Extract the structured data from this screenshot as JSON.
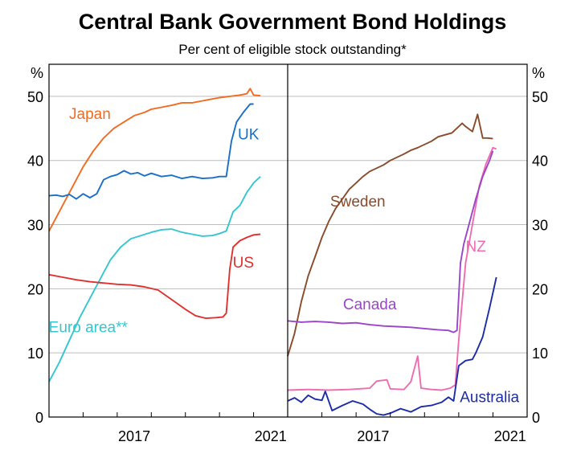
{
  "chart_data": {
    "title": "Central Bank Government Bond Holdings",
    "subtitle": "Per cent of eligible stock outstanding*",
    "unit_label": "%",
    "type": "line",
    "ylim": [
      0,
      55
    ],
    "yticks": [
      0,
      10,
      20,
      30,
      40,
      50
    ],
    "grid": true,
    "panels": [
      {
        "name": "left",
        "xlim": [
          2015.0,
          2022.0
        ],
        "xticks": [
          2017,
          2021
        ],
        "series": [
          {
            "name": "Japan",
            "color": "#f26b21",
            "label_at": [
              2016.2,
              46.5
            ],
            "points": [
              [
                2015.0,
                29
              ],
              [
                2015.2,
                31
              ],
              [
                2015.5,
                34
              ],
              [
                2015.8,
                37
              ],
              [
                2016.0,
                39
              ],
              [
                2016.3,
                41.5
              ],
              [
                2016.6,
                43.5
              ],
              [
                2016.9,
                45
              ],
              [
                2017.2,
                46
              ],
              [
                2017.5,
                47
              ],
              [
                2017.8,
                47.5
              ],
              [
                2018.0,
                48
              ],
              [
                2018.3,
                48.3
              ],
              [
                2018.6,
                48.6
              ],
              [
                2018.9,
                49
              ],
              [
                2019.2,
                49
              ],
              [
                2019.5,
                49.3
              ],
              [
                2019.8,
                49.6
              ],
              [
                2020.0,
                49.8
              ],
              [
                2020.3,
                50
              ],
              [
                2020.6,
                50.2
              ],
              [
                2020.8,
                50.4
              ],
              [
                2020.9,
                51.2
              ],
              [
                2021.0,
                50.2
              ],
              [
                2021.2,
                50.1
              ]
            ]
          },
          {
            "name": "UK",
            "color": "#1a6fc9",
            "label_at": [
              2020.85,
              43.3
            ],
            "points": [
              [
                2015.0,
                34.5
              ],
              [
                2015.2,
                34.6
              ],
              [
                2015.4,
                34.4
              ],
              [
                2015.6,
                34.7
              ],
              [
                2015.8,
                34
              ],
              [
                2016.0,
                34.8
              ],
              [
                2016.2,
                34.2
              ],
              [
                2016.4,
                34.8
              ],
              [
                2016.6,
                37
              ],
              [
                2016.8,
                37.5
              ],
              [
                2017.0,
                37.8
              ],
              [
                2017.2,
                38.4
              ],
              [
                2017.4,
                37.9
              ],
              [
                2017.6,
                38.1
              ],
              [
                2017.8,
                37.6
              ],
              [
                2018.0,
                38.0
              ],
              [
                2018.3,
                37.5
              ],
              [
                2018.6,
                37.7
              ],
              [
                2018.9,
                37.2
              ],
              [
                2019.2,
                37.5
              ],
              [
                2019.5,
                37.2
              ],
              [
                2019.8,
                37.3
              ],
              [
                2020.0,
                37.5
              ],
              [
                2020.2,
                37.5
              ],
              [
                2020.35,
                43
              ],
              [
                2020.5,
                46
              ],
              [
                2020.7,
                47.5
              ],
              [
                2020.9,
                48.8
              ],
              [
                2021.0,
                48.8
              ]
            ]
          },
          {
            "name": "Euro area**",
            "color": "#35c6d1",
            "label_at": [
              2016.15,
              13.2
            ],
            "points": [
              [
                2015.0,
                5.5
              ],
              [
                2015.3,
                8.5
              ],
              [
                2015.6,
                12
              ],
              [
                2015.9,
                15.5
              ],
              [
                2016.2,
                18.5
              ],
              [
                2016.5,
                21.5
              ],
              [
                2016.8,
                24.5
              ],
              [
                2017.1,
                26.5
              ],
              [
                2017.4,
                27.8
              ],
              [
                2017.7,
                28.3
              ],
              [
                2018.0,
                28.8
              ],
              [
                2018.3,
                29.2
              ],
              [
                2018.6,
                29.3
              ],
              [
                2018.9,
                28.8
              ],
              [
                2019.2,
                28.5
              ],
              [
                2019.5,
                28.2
              ],
              [
                2019.8,
                28.3
              ],
              [
                2020.0,
                28.6
              ],
              [
                2020.2,
                29
              ],
              [
                2020.4,
                32
              ],
              [
                2020.6,
                33
              ],
              [
                2020.8,
                35
              ],
              [
                2021.0,
                36.5
              ],
              [
                2021.2,
                37.5
              ]
            ]
          },
          {
            "name": "US",
            "color": "#e0312f",
            "label_at": [
              2020.7,
              23.3
            ],
            "points": [
              [
                2015.0,
                22.2
              ],
              [
                2015.4,
                21.8
              ],
              [
                2015.8,
                21.4
              ],
              [
                2016.2,
                21.1
              ],
              [
                2016.6,
                20.9
              ],
              [
                2017.0,
                20.7
              ],
              [
                2017.4,
                20.6
              ],
              [
                2017.8,
                20.3
              ],
              [
                2018.2,
                19.8
              ],
              [
                2018.6,
                18.3
              ],
              [
                2019.0,
                16.8
              ],
              [
                2019.3,
                15.8
              ],
              [
                2019.6,
                15.4
              ],
              [
                2019.9,
                15.5
              ],
              [
                2020.1,
                15.6
              ],
              [
                2020.2,
                16.2
              ],
              [
                2020.3,
                23
              ],
              [
                2020.4,
                26.5
              ],
              [
                2020.6,
                27.5
              ],
              [
                2020.8,
                28
              ],
              [
                2021.0,
                28.4
              ],
              [
                2021.2,
                28.5
              ]
            ]
          }
        ]
      },
      {
        "name": "right",
        "xlim": [
          2015.0,
          2022.0
        ],
        "xticks": [
          2017,
          2021
        ],
        "series": [
          {
            "name": "Sweden",
            "color": "#8b4a2a",
            "label_at": [
              2017.05,
              32.8
            ],
            "points": [
              [
                2015.0,
                9.5
              ],
              [
                2015.2,
                13
              ],
              [
                2015.4,
                18
              ],
              [
                2015.6,
                22
              ],
              [
                2015.8,
                25
              ],
              [
                2016.0,
                28
              ],
              [
                2016.2,
                30.5
              ],
              [
                2016.4,
                32.5
              ],
              [
                2016.6,
                34
              ],
              [
                2016.8,
                35.5
              ],
              [
                2017.0,
                36.5
              ],
              [
                2017.2,
                37.5
              ],
              [
                2017.4,
                38.3
              ],
              [
                2017.6,
                38.8
              ],
              [
                2017.8,
                39.3
              ],
              [
                2018.0,
                40
              ],
              [
                2018.2,
                40.5
              ],
              [
                2018.4,
                41
              ],
              [
                2018.6,
                41.6
              ],
              [
                2018.8,
                42
              ],
              [
                2019.0,
                42.5
              ],
              [
                2019.2,
                43
              ],
              [
                2019.4,
                43.7
              ],
              [
                2019.6,
                44
              ],
              [
                2019.8,
                44.3
              ],
              [
                2020.0,
                45.3
              ],
              [
                2020.1,
                45.8
              ],
              [
                2020.2,
                45.3
              ],
              [
                2020.4,
                44.5
              ],
              [
                2020.55,
                47.2
              ],
              [
                2020.7,
                43.5
              ],
              [
                2020.85,
                43.5
              ],
              [
                2021.0,
                43.4
              ]
            ]
          },
          {
            "name": "NZ",
            "color": "#f06bb0",
            "label_at": [
              2020.5,
              25.8
            ],
            "points": [
              [
                2015.0,
                4.2
              ],
              [
                2015.6,
                4.3
              ],
              [
                2016.2,
                4.2
              ],
              [
                2016.8,
                4.3
              ],
              [
                2017.4,
                4.5
              ],
              [
                2017.6,
                5.6
              ],
              [
                2017.9,
                5.8
              ],
              [
                2018.0,
                4.4
              ],
              [
                2018.4,
                4.3
              ],
              [
                2018.6,
                5.5
              ],
              [
                2018.8,
                9.5
              ],
              [
                2018.9,
                4.5
              ],
              [
                2019.2,
                4.3
              ],
              [
                2019.5,
                4.2
              ],
              [
                2019.75,
                4.5
              ],
              [
                2019.9,
                5
              ],
              [
                2020.0,
                12
              ],
              [
                2020.2,
                24
              ],
              [
                2020.4,
                30
              ],
              [
                2020.6,
                36
              ],
              [
                2020.8,
                39.5
              ],
              [
                2021.0,
                42
              ],
              [
                2021.1,
                41.8
              ]
            ]
          },
          {
            "name": "Canada",
            "color": "#9b45c9",
            "label_at": [
              2017.4,
              16.8
            ],
            "points": [
              [
                2015.0,
                15
              ],
              [
                2015.4,
                14.8
              ],
              [
                2015.8,
                14.9
              ],
              [
                2016.2,
                14.8
              ],
              [
                2016.6,
                14.6
              ],
              [
                2017.0,
                14.7
              ],
              [
                2017.4,
                14.4
              ],
              [
                2017.8,
                14.2
              ],
              [
                2018.2,
                14.1
              ],
              [
                2018.6,
                14.0
              ],
              [
                2019.0,
                13.8
              ],
              [
                2019.4,
                13.6
              ],
              [
                2019.7,
                13.5
              ],
              [
                2019.85,
                13.2
              ],
              [
                2019.95,
                13.5
              ],
              [
                2020.05,
                24
              ],
              [
                2020.15,
                27
              ],
              [
                2020.3,
                30
              ],
              [
                2020.5,
                34
              ],
              [
                2020.7,
                37.5
              ],
              [
                2020.9,
                40
              ],
              [
                2021.0,
                41.5
              ]
            ]
          },
          {
            "name": "Australia",
            "color": "#1c2ca8",
            "label_at": [
              2020.9,
              2.3
            ],
            "points": [
              [
                2015.0,
                2.5
              ],
              [
                2015.2,
                3
              ],
              [
                2015.4,
                2.3
              ],
              [
                2015.6,
                3.4
              ],
              [
                2015.8,
                2.8
              ],
              [
                2016.0,
                2.6
              ],
              [
                2016.1,
                4
              ],
              [
                2016.3,
                1
              ],
              [
                2016.6,
                1.8
              ],
              [
                2016.9,
                2.5
              ],
              [
                2017.2,
                2
              ],
              [
                2017.4,
                1.2
              ],
              [
                2017.6,
                0.5
              ],
              [
                2017.8,
                0.3
              ],
              [
                2018.0,
                0.6
              ],
              [
                2018.3,
                1.3
              ],
              [
                2018.6,
                0.8
              ],
              [
                2018.9,
                1.6
              ],
              [
                2019.2,
                1.8
              ],
              [
                2019.5,
                2.3
              ],
              [
                2019.7,
                3.1
              ],
              [
                2019.85,
                2.5
              ],
              [
                2020.0,
                8
              ],
              [
                2020.2,
                8.8
              ],
              [
                2020.4,
                9
              ],
              [
                2020.5,
                10
              ],
              [
                2020.7,
                12.5
              ],
              [
                2020.9,
                17
              ],
              [
                2021.1,
                21.8
              ]
            ]
          }
        ]
      }
    ]
  }
}
